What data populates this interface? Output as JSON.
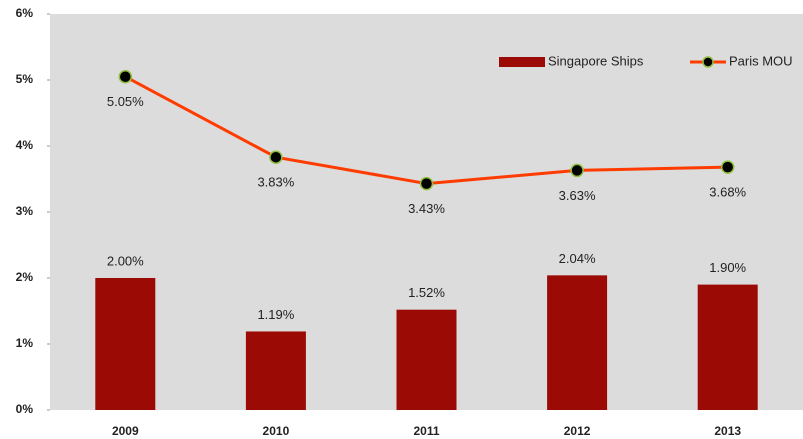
{
  "chart_data": {
    "type": "bar-line",
    "categories": [
      "2009",
      "2010",
      "2011",
      "2012",
      "2013"
    ],
    "series": [
      {
        "name": "Singapore Ships",
        "type": "bar",
        "color": "#9b0a04",
        "values": [
          2.0,
          1.19,
          1.52,
          2.04,
          1.9
        ],
        "value_labels": [
          "2.00%",
          "1.19%",
          "1.52%",
          "2.04%",
          "1.90%"
        ]
      },
      {
        "name": "Paris MOU",
        "type": "line",
        "color": "#ff3c00",
        "marker_color": "#000000",
        "marker_edge": "#8fbf3f",
        "values": [
          5.05,
          3.83,
          3.43,
          3.63,
          3.68
        ],
        "value_labels": [
          "5.05%",
          "3.83%",
          "3.43%",
          "3.63%",
          "3.68%"
        ]
      }
    ],
    "ylim": [
      0,
      6
    ],
    "yticks": [
      {
        "value": 0,
        "label": "0%"
      },
      {
        "value": 1,
        "label": "1%"
      },
      {
        "value": 2,
        "label": "2%"
      },
      {
        "value": 3,
        "label": "3%"
      },
      {
        "value": 4,
        "label": "4%"
      },
      {
        "value": 5,
        "label": "5%"
      },
      {
        "value": 6,
        "label": "6%"
      }
    ],
    "legend": "top-right",
    "background": "#dcdcdc"
  }
}
